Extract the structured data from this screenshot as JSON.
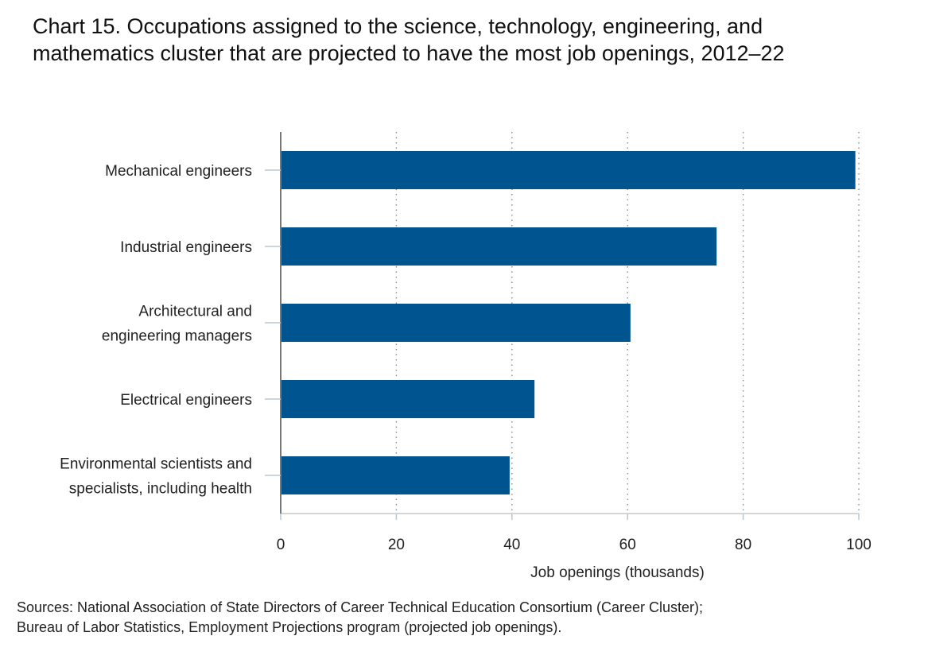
{
  "title_lines": [
    "Chart 15. Occupations assigned to the science, technology, engineering, and",
    "mathematics cluster that are projected to have the most job openings, 2012–22"
  ],
  "source_lines": [
    "Sources: National Association of State Directors of Career Technical Education Consortium (Career Cluster);",
    "Bureau of Labor Statistics, Employment Projections program (projected job openings)."
  ],
  "chart_data": {
    "type": "bar",
    "orientation": "horizontal",
    "title": "Chart 15. Occupations assigned to the science, technology, engineering, and mathematics cluster that are projected to have the most job openings, 2012–22",
    "categories": [
      "Mechanical engineers",
      "Industrial engineers",
      "Architectural and engineering managers",
      "Electrical engineers",
      "Environmental scientists and specialists, including health"
    ],
    "category_lines": [
      [
        "Mechanical engineers"
      ],
      [
        "Industrial engineers"
      ],
      [
        "Architectural and",
        "engineering managers"
      ],
      [
        "Electrical engineers"
      ],
      [
        "Environmental scientists and",
        "specialists, including health"
      ]
    ],
    "values": [
      99.4,
      75.4,
      60.5,
      43.9,
      39.6
    ],
    "xlabel": "Job openings (thousands)",
    "ylabel": "",
    "xlim": [
      0,
      100
    ],
    "xticks": [
      0,
      20,
      40,
      60,
      80,
      100
    ],
    "bar_color": "#00548f",
    "gridlines": "vertical dotted",
    "legend": "none"
  }
}
